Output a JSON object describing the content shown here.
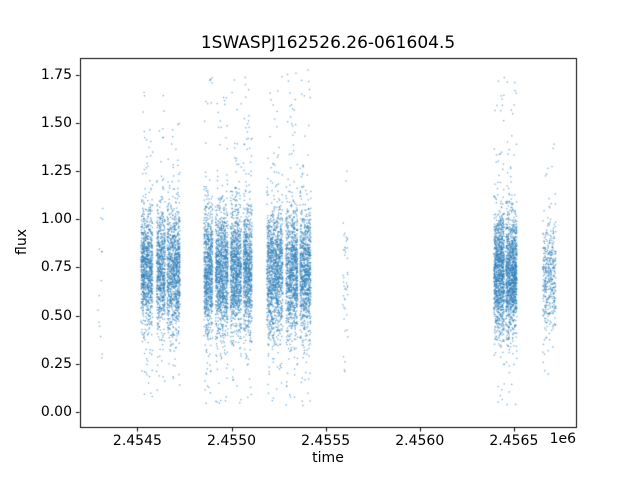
{
  "chart_data": {
    "type": "scatter",
    "title": "1SWASPJ162526.26-061604.5",
    "xlabel": "time",
    "ylabel": "flux",
    "marker_color": "#2f7fb8",
    "grid": false,
    "legend": null,
    "x_axis": {
      "min": 2454195,
      "max": 2456830,
      "ticks": [
        2454500,
        2455000,
        2455500,
        2456000,
        2456500
      ],
      "tick_labels": [
        "2.4545",
        "2.4550",
        "2.4555",
        "2.4560",
        "2.4565"
      ],
      "offset": "1e6"
    },
    "y_axis": {
      "min": -0.08,
      "max": 1.84,
      "ticks": [
        0.0,
        0.25,
        0.5,
        0.75,
        1.0,
        1.25,
        1.5,
        1.75
      ],
      "tick_labels": [
        "0.00",
        "0.25",
        "0.50",
        "0.75",
        "1.00",
        "1.25",
        "1.50",
        "1.75"
      ]
    },
    "clusters": [
      {
        "t0": 2454290,
        "t1": 2454320,
        "n": 14,
        "flux": {
          "mean": 0.75,
          "sd": 0.25,
          "tail_frac": 0.0,
          "lo": 0.28,
          "hi": 1.12
        }
      },
      {
        "t0": 2454519,
        "t1": 2454726,
        "n": 2600,
        "flux": {
          "mean": 0.74,
          "sd": 0.16,
          "tail_frac": 0.05,
          "lo": 0.07,
          "hi": 1.68
        },
        "gaps": [
          [
            0.3,
            0.4
          ],
          [
            0.62,
            0.67
          ]
        ]
      },
      {
        "t0": 2454854,
        "t1": 2455109,
        "n": 3600,
        "flux": {
          "mean": 0.73,
          "sd": 0.17,
          "tail_frac": 0.06,
          "lo": 0.04,
          "hi": 1.74
        },
        "gaps": [
          [
            0.18,
            0.24
          ],
          [
            0.5,
            0.55
          ],
          [
            0.78,
            0.82
          ]
        ]
      },
      {
        "t0": 2455188,
        "t1": 2455422,
        "n": 3100,
        "flux": {
          "mean": 0.72,
          "sd": 0.17,
          "tail_frac": 0.06,
          "lo": 0.03,
          "hi": 1.78
        },
        "gaps": [
          [
            0.36,
            0.43
          ],
          [
            0.7,
            0.75
          ]
        ]
      },
      {
        "t0": 2455592,
        "t1": 2455618,
        "n": 45,
        "flux": {
          "mean": 0.66,
          "sd": 0.22,
          "tail_frac": 0.12,
          "lo": 0.1,
          "hi": 1.45
        }
      },
      {
        "t0": 2456394,
        "t1": 2456516,
        "n": 2300,
        "flux": {
          "mean": 0.72,
          "sd": 0.16,
          "tail_frac": 0.05,
          "lo": 0.02,
          "hi": 1.76
        },
        "gaps": [
          [
            0.45,
            0.52
          ]
        ]
      },
      {
        "t0": 2456654,
        "t1": 2456723,
        "n": 420,
        "flux": {
          "mean": 0.7,
          "sd": 0.15,
          "tail_frac": 0.06,
          "lo": 0.15,
          "hi": 1.42
        }
      }
    ]
  }
}
